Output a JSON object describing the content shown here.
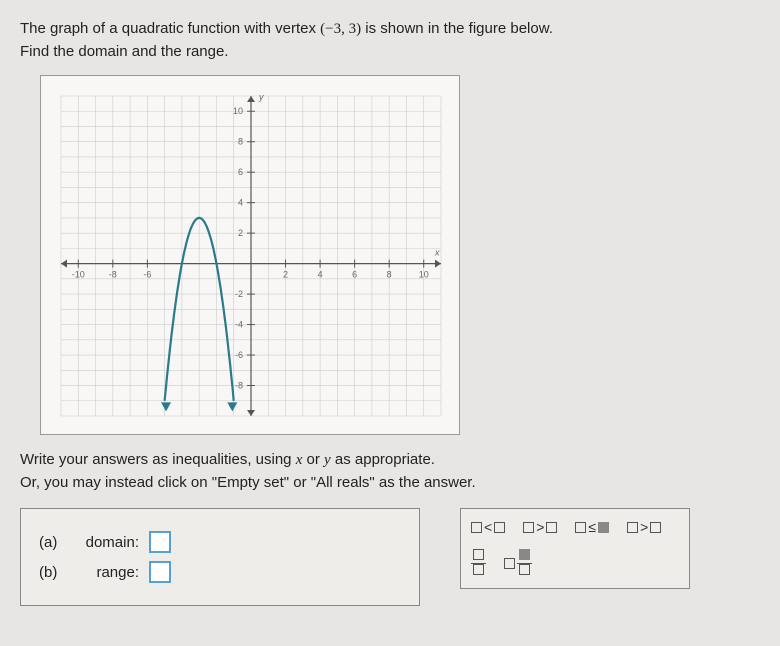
{
  "question": {
    "line1_prefix": "The graph of a quadratic function with vertex ",
    "vertex": "(−3, 3)",
    "line1_suffix": " is shown in the figure below.",
    "line2": "Find the domain and the range."
  },
  "graph": {
    "type": "scatter",
    "xlim": [
      -11,
      11
    ],
    "ylim": [
      -10,
      11
    ],
    "xticks": [
      -10,
      -8,
      -6,
      -4,
      -2,
      2,
      4,
      6,
      8,
      10
    ],
    "yticks": [
      -8,
      -6,
      -4,
      -2,
      2,
      4,
      6,
      8,
      10
    ],
    "xtick_labels_shown": [
      -10,
      -8,
      -6,
      2,
      4,
      6,
      8,
      10
    ],
    "ytick_labels_shown": [
      -8,
      -6,
      -4,
      -2,
      2,
      4,
      6,
      8,
      10
    ],
    "xlabel": "x",
    "ylabel": "y",
    "label_fontsize": 9,
    "background_color": "#f8f7f5",
    "grid_color": "#cccccc",
    "axis_color": "#555555",
    "curve": {
      "vertex": [
        -3,
        3
      ],
      "a": -3,
      "color": "#2a7a8c",
      "line_width": 2.2,
      "x_draw_range": [
        -5,
        -1
      ],
      "arrows_down": true
    }
  },
  "instruction": {
    "line1_prefix": "Write your answers as inequalities, using ",
    "var1": "x",
    "mid": " or ",
    "var2": "y",
    "line1_suffix": " as appropriate.",
    "line2": "Or, you may instead click on \"Empty set\" or \"All reals\" as the answer."
  },
  "parts": {
    "a": {
      "label": "(a)",
      "name": "domain:"
    },
    "b": {
      "label": "(b)",
      "name": "range:"
    }
  },
  "symbols": {
    "lt": "<",
    "gt": ">",
    "le": "≤",
    "ge": ">"
  }
}
